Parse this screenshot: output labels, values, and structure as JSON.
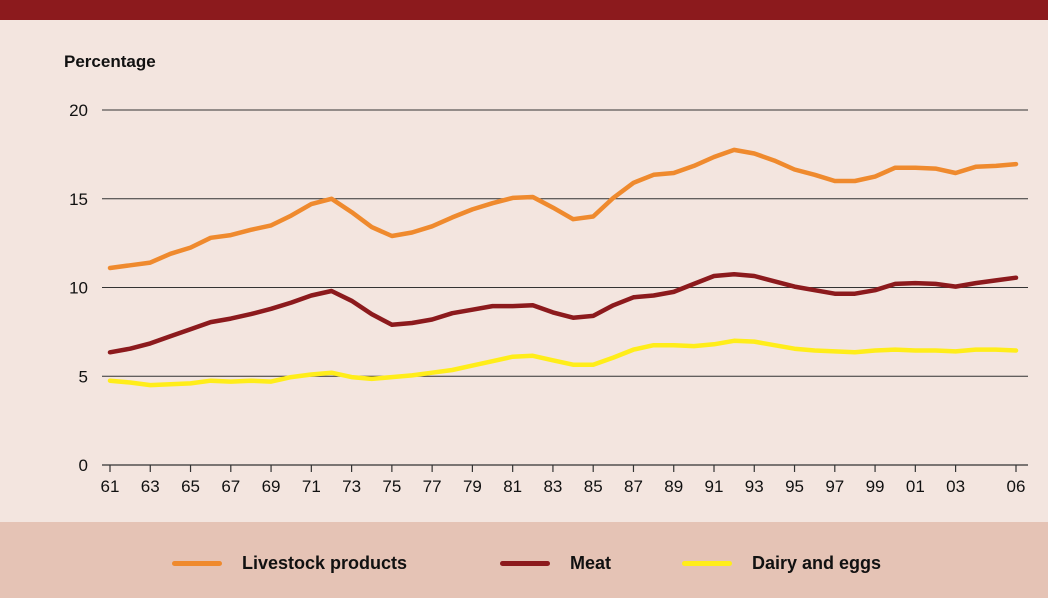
{
  "chart_data": {
    "type": "line",
    "title": "",
    "xlabel": "",
    "ylabel": "Percentage",
    "ylim": [
      0,
      20
    ],
    "yticks": [
      0,
      5,
      10,
      15,
      20
    ],
    "x": [
      1961,
      1962,
      1963,
      1964,
      1965,
      1966,
      1967,
      1968,
      1969,
      1970,
      1971,
      1972,
      1973,
      1974,
      1975,
      1976,
      1977,
      1978,
      1979,
      1980,
      1981,
      1982,
      1983,
      1984,
      1985,
      1986,
      1987,
      1988,
      1989,
      1990,
      1991,
      1992,
      1993,
      1994,
      1995,
      1996,
      1997,
      1998,
      1999,
      2000,
      2001,
      2002,
      2003,
      2004,
      2005,
      2006
    ],
    "xlim": [
      1961,
      2006
    ],
    "xticks": [
      {
        "value": 1961,
        "label": "61"
      },
      {
        "value": 1963,
        "label": "63"
      },
      {
        "value": 1965,
        "label": "65"
      },
      {
        "value": 1967,
        "label": "67"
      },
      {
        "value": 1969,
        "label": "69"
      },
      {
        "value": 1971,
        "label": "71"
      },
      {
        "value": 1973,
        "label": "73"
      },
      {
        "value": 1975,
        "label": "75"
      },
      {
        "value": 1977,
        "label": "77"
      },
      {
        "value": 1979,
        "label": "79"
      },
      {
        "value": 1981,
        "label": "81"
      },
      {
        "value": 1983,
        "label": "83"
      },
      {
        "value": 1985,
        "label": "85"
      },
      {
        "value": 1987,
        "label": "87"
      },
      {
        "value": 1989,
        "label": "89"
      },
      {
        "value": 1991,
        "label": "91"
      },
      {
        "value": 1993,
        "label": "93"
      },
      {
        "value": 1995,
        "label": "95"
      },
      {
        "value": 1997,
        "label": "97"
      },
      {
        "value": 1999,
        "label": "99"
      },
      {
        "value": 2001,
        "label": "01"
      },
      {
        "value": 2003,
        "label": "03"
      },
      {
        "value": 2006,
        "label": "06"
      }
    ],
    "grid": true,
    "legend_position": "bottom",
    "series": [
      {
        "name": "Livestock products",
        "color": "#ef8a2e",
        "values": [
          11.1,
          11.25,
          11.4,
          11.9,
          12.25,
          12.8,
          12.95,
          13.25,
          13.5,
          14.05,
          14.7,
          15.0,
          14.25,
          13.4,
          12.9,
          13.1,
          13.45,
          13.95,
          14.4,
          14.75,
          15.05,
          15.1,
          14.5,
          13.85,
          14.0,
          15.05,
          15.9,
          16.35,
          16.45,
          16.85,
          17.35,
          17.75,
          17.55,
          17.15,
          16.65,
          16.35,
          16.0,
          16.0,
          16.25,
          16.75,
          16.75,
          16.7,
          16.45,
          16.8,
          16.85,
          16.95
        ]
      },
      {
        "name": "Meat",
        "color": "#8c1a1d",
        "values": [
          6.35,
          6.55,
          6.85,
          7.25,
          7.65,
          8.05,
          8.25,
          8.5,
          8.8,
          9.15,
          9.55,
          9.8,
          9.25,
          8.5,
          7.9,
          8.0,
          8.2,
          8.55,
          8.75,
          8.95,
          8.95,
          9.0,
          8.6,
          8.3,
          8.4,
          9.0,
          9.45,
          9.55,
          9.75,
          10.2,
          10.65,
          10.75,
          10.65,
          10.35,
          10.05,
          9.85,
          9.65,
          9.65,
          9.85,
          10.2,
          10.25,
          10.2,
          10.05,
          10.25,
          10.4,
          10.55
        ]
      },
      {
        "name": "Dairy and eggs",
        "color": "#ffed1a",
        "values": [
          4.75,
          4.65,
          4.5,
          4.55,
          4.6,
          4.75,
          4.7,
          4.75,
          4.7,
          4.95,
          5.1,
          5.2,
          4.95,
          4.85,
          4.95,
          5.05,
          5.2,
          5.35,
          5.6,
          5.85,
          6.1,
          6.15,
          5.9,
          5.65,
          5.65,
          6.05,
          6.5,
          6.75,
          6.75,
          6.7,
          6.8,
          7.0,
          6.95,
          6.75,
          6.55,
          6.45,
          6.4,
          6.35,
          6.45,
          6.5,
          6.45,
          6.45,
          6.4,
          6.5,
          6.5,
          6.45
        ]
      }
    ]
  }
}
